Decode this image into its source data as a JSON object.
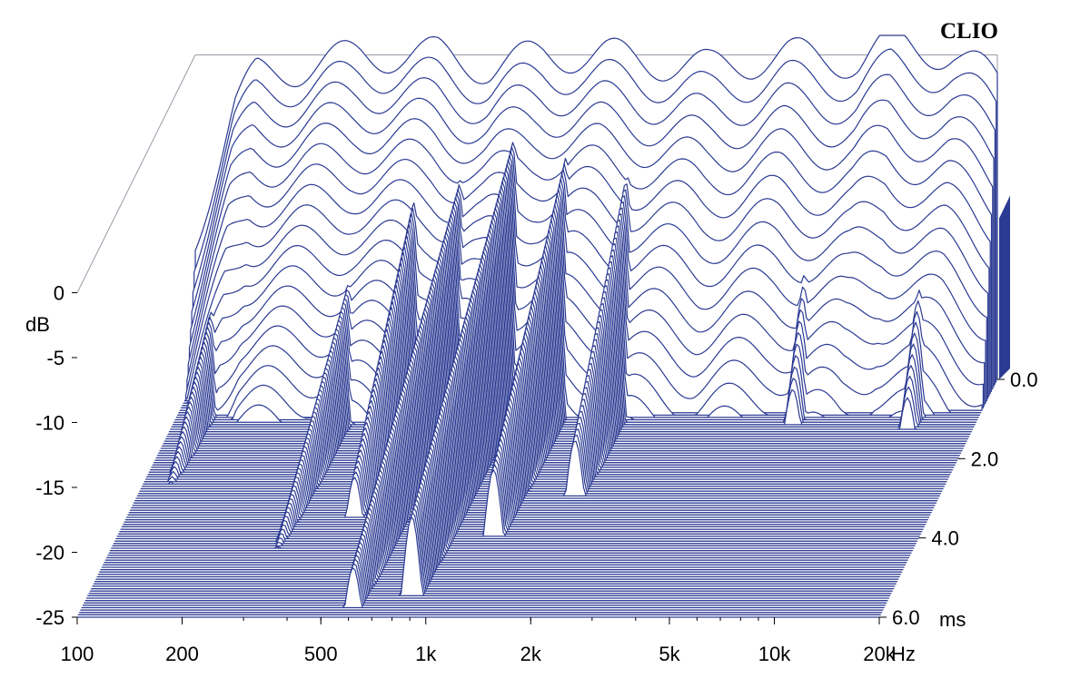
{
  "chart_data": {
    "type": "waterfall",
    "brand": "CLIO",
    "x_axis": {
      "scale": "log",
      "range": [
        100,
        20000
      ],
      "ticks": [
        {
          "value": 100,
          "label": "100"
        },
        {
          "value": 200,
          "label": "200"
        },
        {
          "value": 500,
          "label": "500"
        },
        {
          "value": 1000,
          "label": "1k"
        },
        {
          "value": 2000,
          "label": "2k"
        },
        {
          "value": 5000,
          "label": "5k"
        },
        {
          "value": 10000,
          "label": "10k"
        },
        {
          "value": 20000,
          "label": "20k"
        }
      ],
      "unit": "Hz"
    },
    "y_axis": {
      "range": [
        -25,
        0
      ],
      "ticks": [
        {
          "value": 0,
          "label": "0"
        },
        {
          "value": -5,
          "label": "-5"
        },
        {
          "value": -10,
          "label": "-10"
        },
        {
          "value": -15,
          "label": "-15"
        },
        {
          "value": -20,
          "label": "-20"
        },
        {
          "value": -25,
          "label": "-25"
        }
      ],
      "unit": "dB"
    },
    "time_axis": {
      "range": [
        0,
        6
      ],
      "ticks": [
        {
          "value": 0,
          "label": "0.0"
        },
        {
          "value": 2,
          "label": "2.0"
        },
        {
          "value": 4,
          "label": "4.0"
        },
        {
          "value": 6,
          "label": "6.0"
        }
      ],
      "unit": "ms"
    },
    "slices": 100,
    "initial_response": [
      {
        "f": 100,
        "db": -14
      },
      {
        "f": 130,
        "db": -4
      },
      {
        "f": 150,
        "db": -1.5
      },
      {
        "f": 200,
        "db": -1
      },
      {
        "f": 300,
        "db": 0
      },
      {
        "f": 500,
        "db": 0
      },
      {
        "f": 700,
        "db": -1
      },
      {
        "f": 1000,
        "db": 0
      },
      {
        "f": 1500,
        "db": 0
      },
      {
        "f": 2000,
        "db": -0.5
      },
      {
        "f": 3000,
        "db": -1
      },
      {
        "f": 5000,
        "db": 0
      },
      {
        "f": 8000,
        "db": -0.5
      },
      {
        "f": 10000,
        "db": 1
      },
      {
        "f": 15000,
        "db": 0
      },
      {
        "f": 20000,
        "db": -2
      }
    ],
    "decay_peaks": [
      {
        "f": 120,
        "db": -16,
        "decay_ms": 4.2
      },
      {
        "f": 300,
        "db": -14,
        "decay_ms": 5.5
      },
      {
        "f": 450,
        "db": -8,
        "decay_ms": 3.5
      },
      {
        "f": 600,
        "db": -8,
        "decay_ms": 5.8
      },
      {
        "f": 850,
        "db": -5,
        "decay_ms": 5.5
      },
      {
        "f": 1200,
        "db": -6,
        "decay_ms": 4.0
      },
      {
        "f": 1800,
        "db": -7,
        "decay_ms": 3.0
      },
      {
        "f": 6000,
        "db": -9,
        "decay_ms": 1.2
      },
      {
        "f": 13000,
        "db": -9,
        "decay_ms": 1.3
      }
    ],
    "colors": {
      "line": "#2b3a92",
      "frame": "#9a9aa8",
      "background": "#ffffff"
    }
  }
}
